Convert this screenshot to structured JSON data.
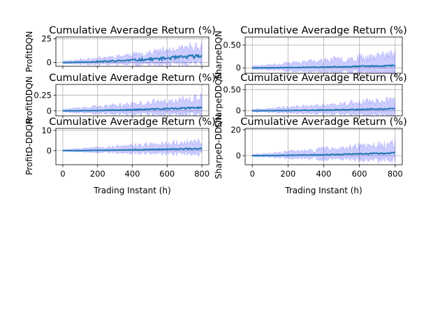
{
  "figure": {
    "colors": {
      "line": "#1f77b4",
      "band": "#0000ff",
      "grid": "#b0b0b0"
    }
  },
  "chart_data": [
    {
      "id": "p00",
      "type": "line",
      "title": "Cumulative Averadge Return (%)",
      "xlabel": "",
      "ylabel": "ProfitDQN",
      "xlim": [
        -40,
        840
      ],
      "ylim": [
        -4,
        27
      ],
      "yticks": [
        0,
        25
      ],
      "xticks": [
        0,
        200,
        400,
        600,
        800
      ],
      "show_xtick_labels": false,
      "grid": true,
      "series": [
        {
          "style": "mean line with shaded std band",
          "mean_end": 7,
          "band_max": 25
        }
      ]
    },
    {
      "id": "p01",
      "type": "line",
      "title": "Cumulative Averadge Return (%)",
      "xlabel": "",
      "ylabel": "SharpeDQN",
      "xlim": [
        -40,
        840
      ],
      "ylim": [
        -0.12,
        0.68
      ],
      "yticks": [
        0.0,
        0.5
      ],
      "xticks": [
        0,
        200,
        400,
        600,
        800
      ],
      "show_xtick_labels": false,
      "grid": true,
      "series": [
        {
          "style": "mean line with shaded std band",
          "mean_end": 0.05,
          "band_max": 0.6
        }
      ]
    },
    {
      "id": "p10",
      "type": "line",
      "title": "Cumulative Averadge Return (%)",
      "xlabel": "",
      "ylabel": "ProfitDDQN",
      "xlim": [
        -40,
        840
      ],
      "ylim": [
        -0.08,
        0.42
      ],
      "yticks": [
        0.0,
        0.25
      ],
      "xticks": [
        0,
        200,
        400,
        600,
        800
      ],
      "show_xtick_labels": false,
      "grid": true,
      "series": [
        {
          "style": "mean line with shaded std band",
          "mean_end": 0.05,
          "band_max": 0.38
        }
      ]
    },
    {
      "id": "p11",
      "type": "line",
      "title": "Cumulative Averadge Return (%)",
      "xlabel": "",
      "ylabel": "SharpeDDQN",
      "xlim": [
        -40,
        840
      ],
      "ylim": [
        -0.12,
        0.62
      ],
      "yticks": [
        0.0,
        0.5
      ],
      "xticks": [
        0,
        200,
        400,
        600,
        800
      ],
      "show_xtick_labels": false,
      "grid": true,
      "series": [
        {
          "style": "mean line with shaded std band",
          "mean_end": 0.05,
          "band_max": 0.5
        }
      ]
    },
    {
      "id": "p20",
      "type": "line",
      "title": "Cumulative Averadge Return (%)",
      "xlabel": "Trading Instant (h)",
      "ylabel": "ProfitD-DDQN",
      "xlim": [
        -40,
        840
      ],
      "ylim": [
        -7,
        11
      ],
      "yticks": [
        0,
        10
      ],
      "xticks": [
        0,
        200,
        400,
        600,
        800
      ],
      "show_xtick_labels": true,
      "grid": true,
      "series": [
        {
          "style": "mean line with shaded std band",
          "mean_end": 1,
          "band_max": 9
        }
      ]
    },
    {
      "id": "p21",
      "type": "line",
      "title": "Cumulative Averadge Return (%)",
      "xlabel": "Trading Instant (h)",
      "ylabel": "SharpeD-DDQN",
      "xlim": [
        -40,
        840
      ],
      "ylim": [
        -7,
        21
      ],
      "yticks": [
        0,
        20
      ],
      "xticks": [
        0,
        200,
        400,
        600,
        800
      ],
      "show_xtick_labels": true,
      "grid": true,
      "series": [
        {
          "style": "mean line with shaded std band",
          "mean_end": 2,
          "band_max": 18
        }
      ]
    }
  ]
}
